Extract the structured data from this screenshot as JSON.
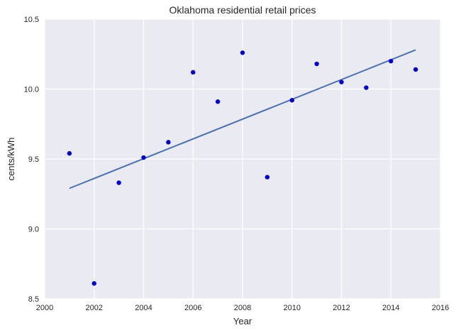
{
  "chart_data": {
    "type": "scatter",
    "title": "Oklahoma   residential retail prices",
    "xlabel": "Year",
    "ylabel": "cents/kWh",
    "xlim": [
      2000,
      2016
    ],
    "ylim": [
      8.5,
      10.5
    ],
    "x_ticks": [
      2000,
      2002,
      2004,
      2006,
      2008,
      2010,
      2012,
      2014,
      2016
    ],
    "y_ticks": [
      8.5,
      9.0,
      9.5,
      10.0,
      10.5
    ],
    "x_tick_labels": [
      "2000",
      "2002",
      "2004",
      "2006",
      "2008",
      "2010",
      "2012",
      "2014",
      "2016"
    ],
    "y_tick_labels": [
      "8.5",
      "9.0",
      "9.5",
      "10.0",
      "10.5"
    ],
    "grid": true,
    "series": [
      {
        "type": "scatter",
        "color": "#0000cc",
        "points": [
          {
            "x": 2001,
            "y": 9.54
          },
          {
            "x": 2002,
            "y": 8.61
          },
          {
            "x": 2003,
            "y": 9.33
          },
          {
            "x": 2004,
            "y": 9.51
          },
          {
            "x": 2005,
            "y": 9.62
          },
          {
            "x": 2006,
            "y": 10.12
          },
          {
            "x": 2007,
            "y": 9.91
          },
          {
            "x": 2008,
            "y": 10.26
          },
          {
            "x": 2009,
            "y": 9.37
          },
          {
            "x": 2010,
            "y": 9.92
          },
          {
            "x": 2011,
            "y": 10.18
          },
          {
            "x": 2012,
            "y": 10.05
          },
          {
            "x": 2013,
            "y": 10.01
          },
          {
            "x": 2014,
            "y": 10.2
          },
          {
            "x": 2015,
            "y": 10.14
          }
        ]
      },
      {
        "type": "line",
        "color": "#4c72b0",
        "points": [
          {
            "x": 2001,
            "y": 9.29
          },
          {
            "x": 2015,
            "y": 10.28
          }
        ]
      }
    ],
    "colors": {
      "plot_background": "#eaeaf2",
      "grid": "#ffffff",
      "text": "#262626"
    }
  }
}
